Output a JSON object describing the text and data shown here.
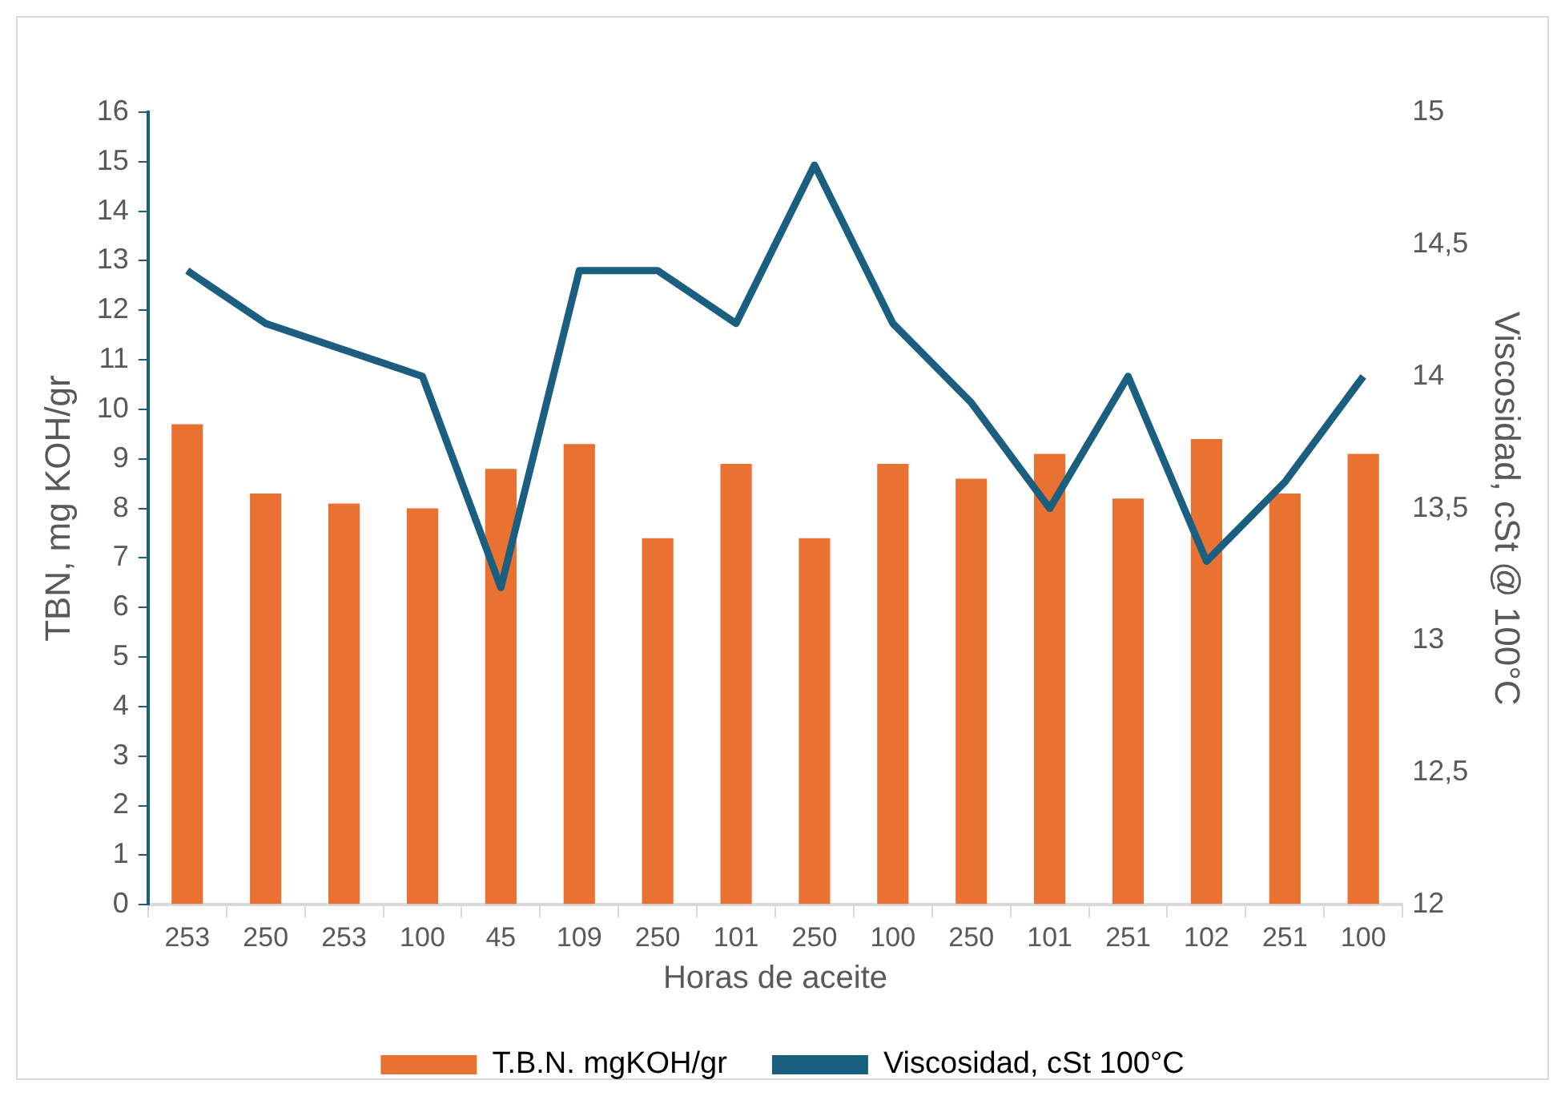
{
  "chart_data": {
    "type": "bar",
    "xlabel": "Horas de aceite",
    "ylabel": "TBN, mg KOH/gr",
    "y2label": "Viscosidad, cSt @ 100°C",
    "categories": [
      "253",
      "250",
      "253",
      "100",
      "45",
      "109",
      "250",
      "101",
      "250",
      "100",
      "250",
      "101",
      "251",
      "102",
      "251",
      "100"
    ],
    "series": [
      {
        "name": "T.B.N. mgKOH/gr",
        "color": "#e97132",
        "values": [
          9.7,
          8.3,
          8.1,
          8.0,
          8.8,
          9.3,
          7.4,
          8.9,
          7.4,
          8.9,
          8.6,
          9.1,
          8.2,
          9.4,
          8.3,
          9.1
        ]
      },
      {
        "name": "Viscosidad, cSt 100°C",
        "type": "line",
        "axis": "y2",
        "color": "#1a5e80",
        "values": [
          14.4,
          14.2,
          14.1,
          14.0,
          13.2,
          14.4,
          14.4,
          14.2,
          14.8,
          14.2,
          13.9,
          13.5,
          14.0,
          13.3,
          13.6,
          14.0
        ]
      }
    ],
    "ylim": [
      0,
      16
    ],
    "yticks": [
      0,
      1,
      2,
      3,
      4,
      5,
      6,
      7,
      8,
      9,
      10,
      11,
      12,
      13,
      14,
      15,
      16
    ],
    "y2lim": [
      12,
      15
    ],
    "y2ticks": [
      12,
      {
        "value": 12.5,
        "label": "12,5"
      },
      13,
      {
        "value": 13.5,
        "label": "13,5"
      },
      14,
      {
        "value": 14.5,
        "label": "14,5"
      },
      15
    ],
    "grid": false,
    "legend": "bottom",
    "marker": "none",
    "line_style": "solid"
  }
}
